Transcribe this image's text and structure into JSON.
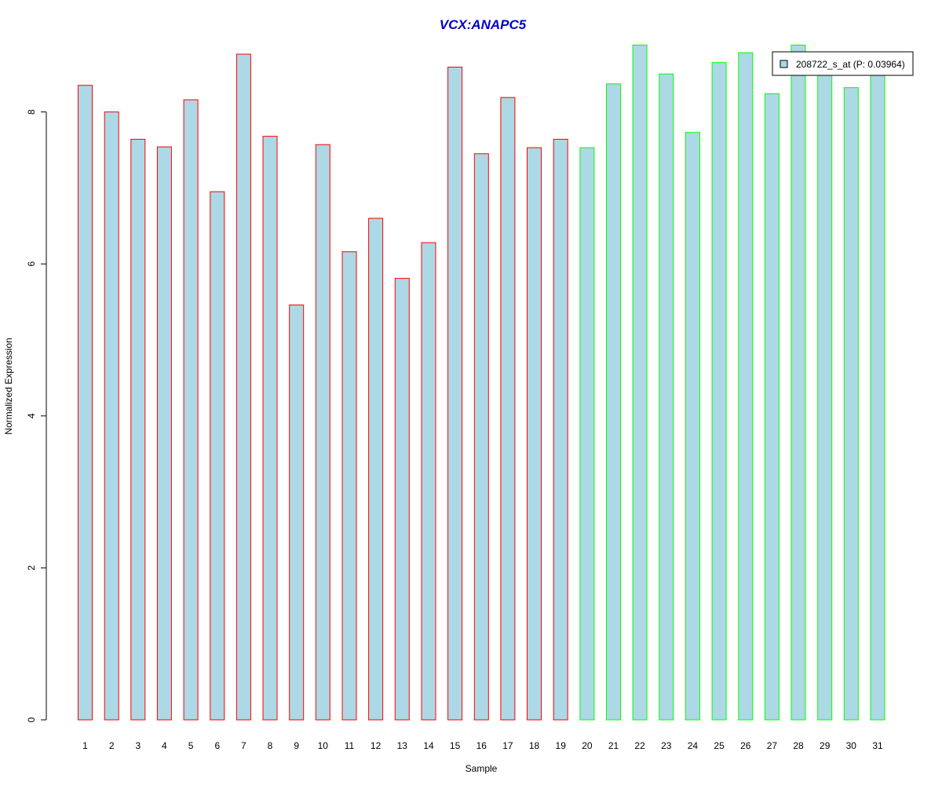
{
  "chart_data": {
    "type": "bar",
    "title": "VCX:ANAPC5",
    "title_color": "#0000CC",
    "xlabel": "Sample",
    "ylabel": "Normalized Expression",
    "ylim": [
      0,
      8.9
    ],
    "yticks": [
      0,
      2,
      4,
      6,
      8
    ],
    "grid": false,
    "legend_position": "top-right",
    "bar_fill_color": "#ADD8E6",
    "group_border_colors": {
      "group1": "#FF0000",
      "group2": "#00FF00"
    },
    "categories": [
      "1",
      "2",
      "3",
      "4",
      "5",
      "6",
      "7",
      "8",
      "9",
      "10",
      "11",
      "12",
      "13",
      "14",
      "15",
      "16",
      "17",
      "18",
      "19",
      "20",
      "21",
      "22",
      "23",
      "24",
      "25",
      "26",
      "27",
      "28",
      "29",
      "30",
      "31"
    ],
    "series": [
      {
        "name": "208722_s_at (P: 0.03964)",
        "values": [
          8.35,
          8.0,
          7.64,
          7.54,
          8.16,
          6.95,
          8.76,
          7.68,
          5.46,
          7.57,
          6.16,
          6.6,
          5.81,
          6.28,
          8.59,
          7.45,
          8.19,
          7.53,
          7.64,
          7.53,
          8.37,
          8.88,
          8.5,
          7.73,
          8.65,
          8.78,
          8.24,
          8.88,
          8.6,
          8.32,
          8.6
        ],
        "groups": [
          "group1",
          "group1",
          "group1",
          "group1",
          "group1",
          "group1",
          "group1",
          "group1",
          "group1",
          "group1",
          "group1",
          "group1",
          "group1",
          "group1",
          "group1",
          "group1",
          "group1",
          "group1",
          "group1",
          "group2",
          "group2",
          "group2",
          "group2",
          "group2",
          "group2",
          "group2",
          "group2",
          "group2",
          "group2",
          "group2",
          "group2"
        ]
      }
    ]
  }
}
